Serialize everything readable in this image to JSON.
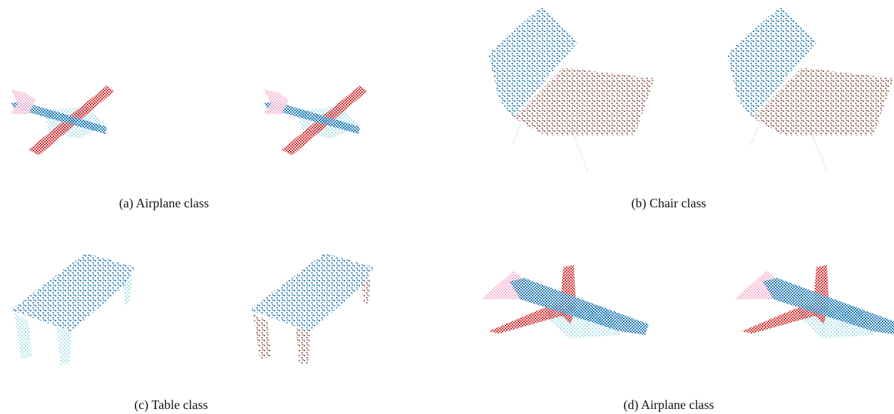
{
  "captions": [
    "(a) Airplane class",
    "(b) Chair class",
    "(c) Table class",
    "(d) Airplane class"
  ]
}
